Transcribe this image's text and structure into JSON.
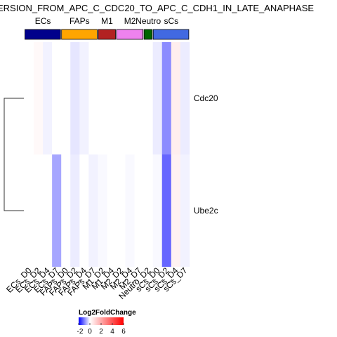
{
  "chart_data": {
    "type": "heatmap",
    "title": "ERSION_FROM_APC_C_CDC20_TO_APC_C_CDH1_IN_LATE_ANAPHASE",
    "columns": [
      "ECs_D0",
      "ECs_D2",
      "ECs_D4",
      "ECs_D7",
      "FAPs_D0",
      "FAPs_D2",
      "FAPs_D4",
      "FAPs_D7",
      "M1_D2",
      "M1_D4",
      "M2_D2",
      "M2_D4",
      "M2_D7",
      "Neutro_D2",
      "sCs_D0",
      "sCs_D2",
      "sCs_D4",
      "sCs_D7"
    ],
    "rows": [
      "Cdc20",
      "Ube2c"
    ],
    "values": [
      [
        0.0,
        0.15,
        -0.1,
        0.0,
        0.0,
        -0.2,
        -0.1,
        0.0,
        0.0,
        0.0,
        0.0,
        0.0,
        0.0,
        0.0,
        -0.15,
        -0.9,
        0.4,
        -0.15
      ],
      [
        0.0,
        0.0,
        0.0,
        -0.7,
        0.0,
        -0.15,
        0.0,
        -0.1,
        -0.05,
        0.0,
        0.0,
        -0.05,
        0.0,
        0.0,
        -0.05,
        -1.2,
        0.3,
        -0.1
      ]
    ],
    "groups": [
      {
        "label": "ECs",
        "color": "#00008b",
        "columns": 4
      },
      {
        "label": "FAPs",
        "color": "#ffa500",
        "columns": 4
      },
      {
        "label": "M1",
        "color": "#b22222",
        "columns": 2
      },
      {
        "label": "M2",
        "color": "#ee82ee",
        "columns": 3
      },
      {
        "label": "Neutro",
        "color": "#006400",
        "columns": 1
      },
      {
        "label": "sCs",
        "color": "#4169e1",
        "columns": 4
      }
    ],
    "legend": {
      "title": "Log2FoldChange",
      "ticks": [
        -2,
        0,
        2,
        4,
        6
      ],
      "min": -2,
      "max": 6
    },
    "color_scale": {
      "low": "#0000ff",
      "mid": "#ffffff",
      "high": "#ff0000"
    }
  }
}
